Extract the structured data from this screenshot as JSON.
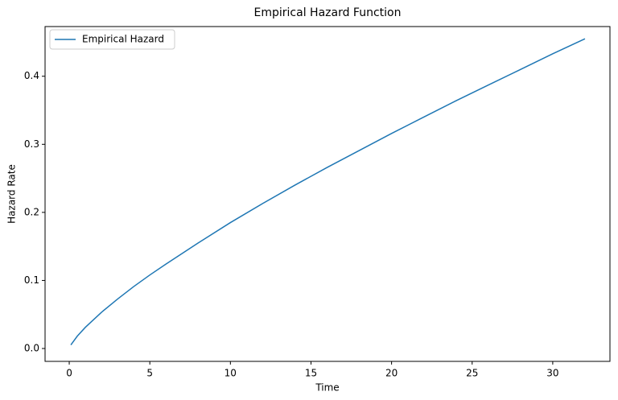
{
  "chart_data": {
    "type": "line",
    "title": "Empirical Hazard Function",
    "x_label": "Time",
    "y_label": "Hazard Rate",
    "x": [
      0.1,
      0.5,
      1,
      2,
      3,
      4,
      5,
      6,
      8,
      10,
      12,
      14,
      16,
      18,
      20,
      22,
      24,
      26,
      28,
      30,
      32
    ],
    "series": [
      {
        "name": "Empirical Hazard",
        "color": "#1f77b4",
        "values": [
          0.0052,
          0.0182,
          0.0311,
          0.0532,
          0.0727,
          0.091,
          0.108,
          0.124,
          0.155,
          0.185,
          0.213,
          0.24,
          0.266,
          0.291,
          0.316,
          0.34,
          0.364,
          0.387,
          0.41,
          0.433,
          0.455
        ]
      }
    ],
    "xlim": [
      -1.5,
      33.55
    ],
    "ylim": [
      -0.0189,
      0.473
    ],
    "xticks": [
      0,
      5,
      10,
      15,
      20,
      25,
      30
    ],
    "yticks": [
      {
        "value": 0,
        "label": "0.0"
      },
      0.1,
      0.2,
      0.3,
      0.4
    ],
    "grid": false,
    "legend": "upper left"
  }
}
